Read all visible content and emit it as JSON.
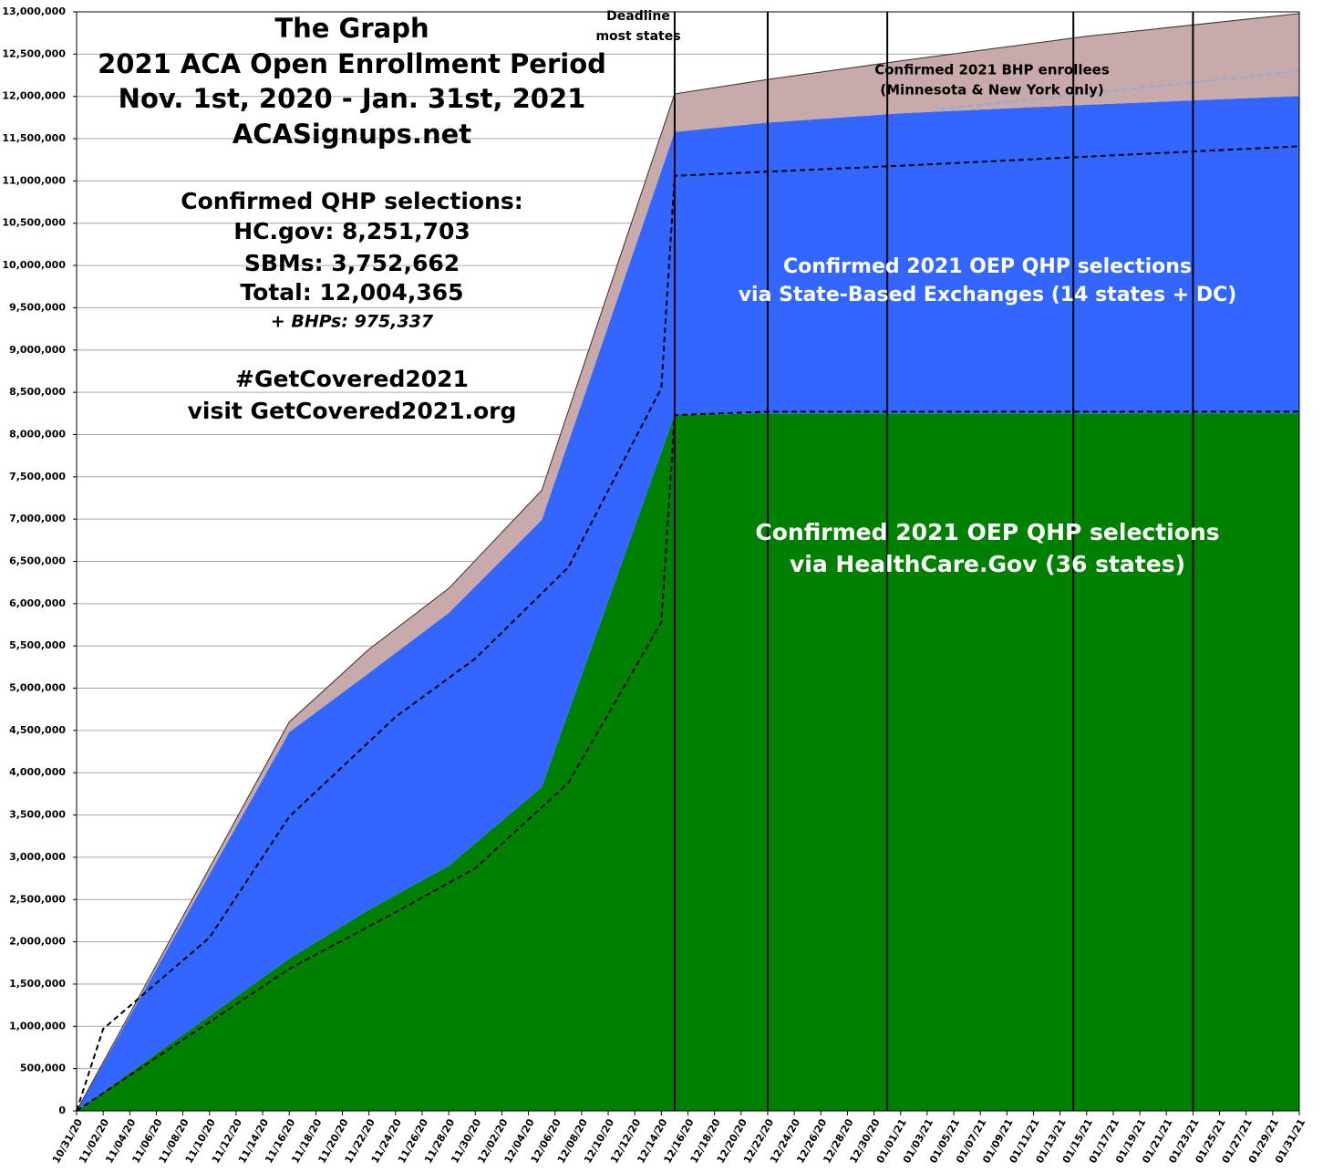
{
  "chart_data": {
    "type": "stacked_area",
    "title_lines": [
      "The Graph",
      "2021 ACA Open Enrollment Period",
      "Nov. 1st, 2020 - Jan. 31st, 2021",
      "ACASignups.net"
    ],
    "info_lines": [
      "Confirmed QHP selections:",
      "HC.gov: 8,251,703",
      "SBMs: 3,752,662",
      "Total: 12,004,365",
      "+ BHPs: 975,337",
      "#GetCovered2021",
      "visit GetCovered2021.org"
    ],
    "deadline_annotation": [
      "Deadline",
      "most states"
    ],
    "x": [
      "10/31/20",
      "11/16/20",
      "11/22/20",
      "11/28/20",
      "12/05/20",
      "12/15/20",
      "12/22/20",
      "01/01/21",
      "01/15/21",
      "01/31/21"
    ],
    "series": [
      {
        "label": [
          "Confirmed 2021 OEP QHP selections",
          "via HealthCare.Gov (36 states)"
        ],
        "color": "#008000",
        "label_color": "#ffffff",
        "values": [
          0,
          1800000,
          2380000,
          2900000,
          3830000,
          8230000,
          8250000,
          8250000,
          8251000,
          8251703
        ]
      },
      {
        "label": [
          "Confirmed 2021 OEP QHP selections",
          "via State-Based Exchanges (14 states + DC)"
        ],
        "color": "#3366ff",
        "label_color": "#ffffff",
        "values": [
          0,
          2680000,
          2800000,
          2990000,
          3160000,
          3350000,
          3440000,
          3550000,
          3650000,
          3752662
        ]
      },
      {
        "label": [
          "Confirmed 2021 BHP enrollees",
          "(Minnesota & New York only)"
        ],
        "color": "#c9aaaa",
        "label_color": "#000000",
        "values": [
          0,
          120000,
          280000,
          290000,
          350000,
          450000,
          510000,
          620000,
          810000,
          975337
        ]
      }
    ],
    "dashed_lines": [
      {
        "color": "#000000",
        "x": [
          "10/31/20",
          "11/02/20",
          "11/10/20",
          "11/16/20",
          "11/24/20",
          "11/30/20",
          "12/07/20",
          "12/14/20",
          "12/15/20",
          "12/22/20",
          "01/01/21",
          "01/31/21"
        ],
        "values": [
          0,
          970000,
          2050000,
          3480000,
          4660000,
          5350000,
          6430000,
          8550000,
          11060000,
          11110000,
          11180000,
          11410000
        ]
      },
      {
        "color": "#000000",
        "x": [
          "10/31/20",
          "11/16/20",
          "11/24/20",
          "11/30/20",
          "12/07/20",
          "12/14/20",
          "12/15/20",
          "12/22/20",
          "01/31/21"
        ],
        "values": [
          0,
          1680000,
          2350000,
          2870000,
          3880000,
          5780000,
          8230000,
          8270000,
          8270000
        ]
      },
      {
        "color": "#8faadc",
        "x": [
          "01/04/21",
          "01/31/21"
        ],
        "values": [
          11850000,
          12300000
        ]
      }
    ],
    "reference_lines": [
      "12/15/20",
      "12/22/20",
      "12/31/20",
      "01/14/21",
      "01/23/21"
    ],
    "xlim": [
      "10/31/20",
      "01/31/21"
    ],
    "xticks": [
      "10/31/20",
      "11/02/20",
      "11/04/20",
      "11/06/20",
      "11/08/20",
      "11/10/20",
      "11/12/20",
      "11/14/20",
      "11/16/20",
      "11/18/20",
      "11/20/20",
      "11/22/20",
      "11/24/20",
      "11/26/20",
      "11/28/20",
      "11/30/20",
      "12/02/20",
      "12/04/20",
      "12/06/20",
      "12/08/20",
      "12/10/20",
      "12/12/20",
      "12/14/20",
      "12/16/20",
      "12/18/20",
      "12/20/20",
      "12/22/20",
      "12/24/20",
      "12/26/20",
      "12/28/20",
      "12/30/20",
      "01/01/21",
      "01/03/21",
      "01/05/21",
      "01/07/21",
      "01/09/21",
      "01/11/21",
      "01/13/21",
      "01/15/21",
      "01/17/21",
      "01/19/21",
      "01/21/21",
      "01/23/21",
      "01/25/21",
      "01/27/21",
      "01/29/21",
      "01/31/21"
    ],
    "ylim": [
      0,
      13000000
    ],
    "yticks": [
      0,
      {
        "value": 500000,
        "label": "500,000"
      },
      {
        "value": 1000000,
        "label": "1,000,000"
      },
      {
        "value": 1500000,
        "label": "1,500,000"
      },
      {
        "value": 2000000,
        "label": "2,000,000"
      },
      {
        "value": 2500000,
        "label": "2,500,000"
      },
      {
        "value": 3000000,
        "label": "3,000,000"
      },
      {
        "value": 3500000,
        "label": "3,500,000"
      },
      {
        "value": 4000000,
        "label": "4,000,000"
      },
      {
        "value": 4500000,
        "label": "4,500,000"
      },
      {
        "value": 5000000,
        "label": "5,000,000"
      },
      {
        "value": 5500000,
        "label": "5,500,000"
      },
      {
        "value": 6000000,
        "label": "6,000,000"
      },
      {
        "value": 6500000,
        "label": "6,500,000"
      },
      {
        "value": 7000000,
        "label": "7,000,000"
      },
      {
        "value": 7500000,
        "label": "7,500,000"
      },
      {
        "value": 8000000,
        "label": "8,000,000"
      },
      {
        "value": 8500000,
        "label": "8,500,000"
      },
      {
        "value": 9000000,
        "label": "9,000,000"
      },
      {
        "value": 9500000,
        "label": "9,500,000"
      },
      {
        "value": 10000000,
        "label": "10,000,000"
      },
      {
        "value": 10500000,
        "label": "10,500,000"
      },
      {
        "value": 11000000,
        "label": "11,000,000"
      },
      {
        "value": 11500000,
        "label": "11,500,000"
      },
      {
        "value": 12000000,
        "label": "12,000,000"
      },
      {
        "value": 12500000,
        "label": "12,500,000"
      },
      {
        "value": 13000000,
        "label": "13,000,000"
      }
    ],
    "grid": true
  }
}
